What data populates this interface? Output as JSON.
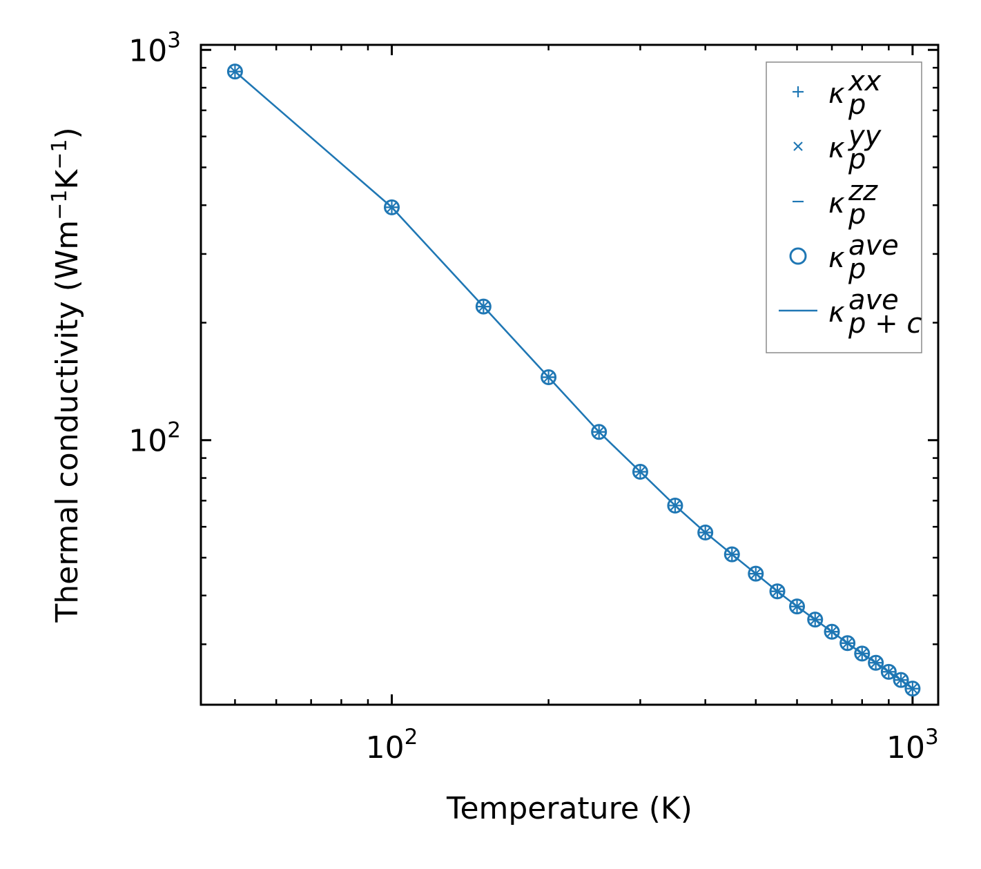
{
  "chart_data": {
    "type": "line",
    "scale": {
      "x": "log",
      "y": "log"
    },
    "xlabel": "Temperature (K)",
    "ylabel": {
      "base": "Thermal conductivity (Wm",
      "sup1": "−1",
      "mid": "K",
      "sup2": "−1",
      "end": ")"
    },
    "xlim": [
      43,
      1120
    ],
    "ylim": [
      21,
      1030
    ],
    "x_ticks": [
      {
        "value": 100,
        "base": "10",
        "exp": "2"
      },
      {
        "value": 1000,
        "base": "10",
        "exp": "3"
      }
    ],
    "y_ticks": [
      {
        "value": 100,
        "base": "10",
        "exp": "2"
      },
      {
        "value": 1000,
        "base": "10",
        "exp": "3"
      }
    ],
    "x": [
      50,
      100,
      150,
      200,
      250,
      300,
      350,
      400,
      450,
      500,
      550,
      600,
      650,
      700,
      750,
      800,
      850,
      900,
      950,
      1000
    ],
    "series": [
      {
        "name": "kxx",
        "marker": "+",
        "values": [
          880,
          395,
          220,
          145,
          105,
          83,
          68,
          58,
          51,
          45.5,
          41,
          37.5,
          34.7,
          32.3,
          30.2,
          28.4,
          26.9,
          25.5,
          24.3,
          23.1
        ]
      },
      {
        "name": "kyy",
        "marker": "x",
        "values": [
          880,
          395,
          220,
          145,
          105,
          83,
          68,
          58,
          51,
          45.5,
          41,
          37.5,
          34.7,
          32.3,
          30.2,
          28.4,
          26.9,
          25.5,
          24.3,
          23.1
        ]
      },
      {
        "name": "kzz",
        "marker": "_",
        "values": [
          880,
          395,
          220,
          145,
          105,
          83,
          68,
          58,
          51,
          45.5,
          41,
          37.5,
          34.7,
          32.3,
          30.2,
          28.4,
          26.9,
          25.5,
          24.3,
          23.1
        ]
      },
      {
        "name": "kave",
        "marker": "o",
        "values": [
          880,
          395,
          220,
          145,
          105,
          83,
          68,
          58,
          51,
          45.5,
          41,
          37.5,
          34.7,
          32.3,
          30.2,
          28.4,
          26.9,
          25.5,
          24.3,
          23.1
        ]
      },
      {
        "name": "kave_pc",
        "marker": "line",
        "values": [
          880,
          395,
          220,
          145,
          105,
          83,
          68,
          58,
          51,
          45.5,
          41,
          37.5,
          34.7,
          32.3,
          30.2,
          28.4,
          26.9,
          25.5,
          24.3,
          23.1
        ]
      }
    ],
    "legend": {
      "placement": "top-right",
      "entries": [
        {
          "symbol": "κ",
          "sub": "p",
          "sup": "xx"
        },
        {
          "symbol": "κ",
          "sub": "p",
          "sup": "yy"
        },
        {
          "symbol": "κ",
          "sub": "p",
          "sup": "zz"
        },
        {
          "symbol": "κ",
          "sub": "p",
          "sup": "ave"
        },
        {
          "symbol": "κ",
          "sub": "p + c",
          "sup": "ave"
        }
      ]
    },
    "color": "#1f77b4",
    "grid": false
  }
}
